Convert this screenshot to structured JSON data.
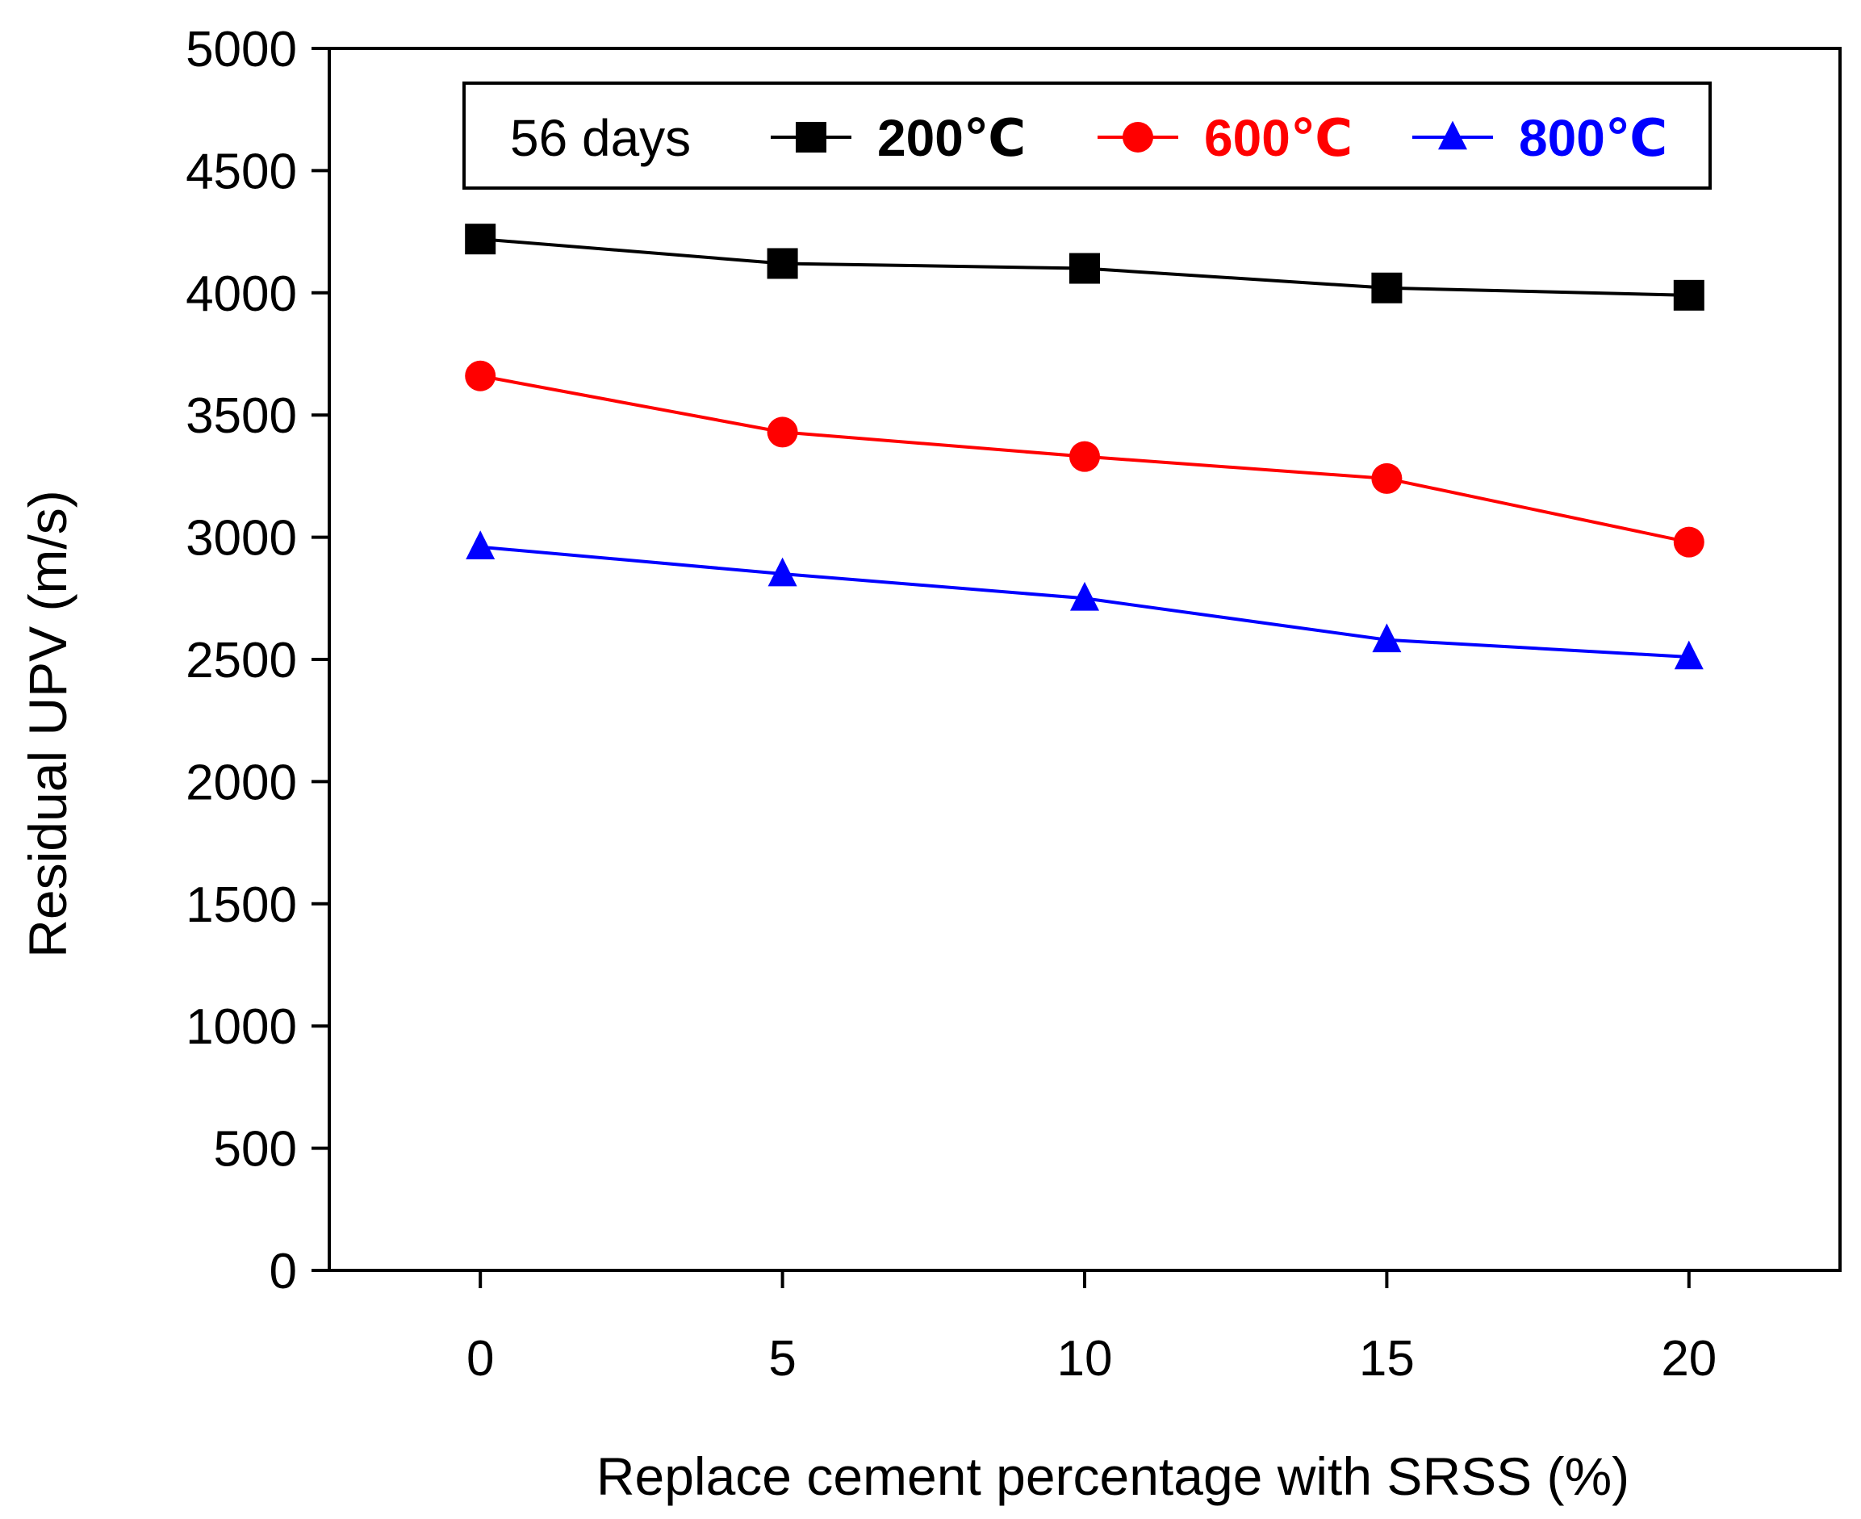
{
  "chart_data": {
    "type": "line",
    "xlabel": "Replace cement percentage with SRSS (%)",
    "ylabel": "Residual UPV (m/s)",
    "x": [
      0,
      5,
      10,
      15,
      20
    ],
    "x_tick_labels": [
      "0",
      "5",
      "10",
      "15",
      "20"
    ],
    "y_ticks": [
      0,
      500,
      1000,
      1500,
      2000,
      2500,
      3000,
      3500,
      4000,
      4500,
      5000
    ],
    "xlim": [
      -2.5,
      22.5
    ],
    "ylim": [
      0,
      5000
    ],
    "grid": false,
    "legend": {
      "title": "56 days",
      "position": "top"
    },
    "series": [
      {
        "name": "200℃",
        "color": "#000000",
        "marker": "square",
        "values": [
          4220,
          4120,
          4100,
          4020,
          3990
        ]
      },
      {
        "name": "600℃",
        "color": "#ff0000",
        "marker": "circle",
        "values": [
          3660,
          3430,
          3330,
          3240,
          2980
        ]
      },
      {
        "name": "800℃",
        "color": "#0000ff",
        "marker": "triangle",
        "values": [
          2960,
          2850,
          2750,
          2580,
          2510
        ]
      }
    ]
  }
}
